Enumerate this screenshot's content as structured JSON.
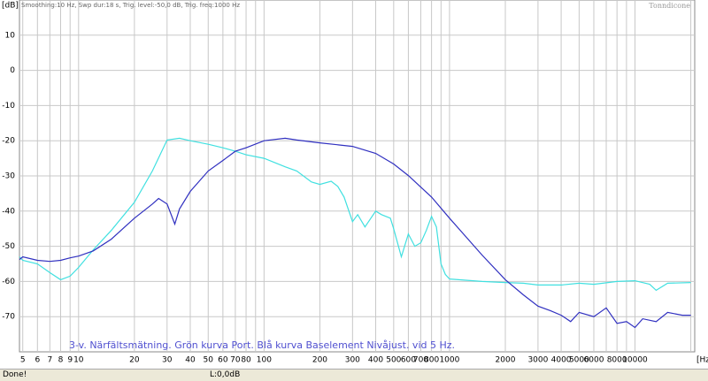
{
  "chart_data": {
    "type": "line",
    "header": "Smoothing:10 Hz, Swp dur:18 s, Trig. level:-50,0 dB, Trig. freq:1000 Hz",
    "watermark": "Tonndicone",
    "y_unit": "[dB]",
    "x_unit": "[Hz]",
    "annotation": "3-v. Närfältsmätning. Grön kurva Port. Blå kurva Baselement  Nivåjust. vid 5 Hz.",
    "xscale": "log",
    "grid": true,
    "xlim": [
      4.8,
      21000
    ],
    "ylim": [
      -80,
      20
    ],
    "yticks": [
      10,
      0,
      -10,
      -20,
      -30,
      -40,
      -50,
      -60,
      -70
    ],
    "xticks": [
      5,
      6,
      7,
      8,
      9,
      10,
      20,
      30,
      40,
      50,
      60,
      70,
      80,
      100,
      200,
      300,
      400,
      500,
      600,
      700,
      800,
      1000,
      2000,
      3000,
      4000,
      5000,
      6000,
      8000,
      10000
    ],
    "x_unlabeled_grid": [
      90,
      900,
      7000,
      9000,
      20000
    ],
    "series": [
      {
        "name": "Port",
        "color": "#40e0e0",
        "x": [
          4.8,
          5,
          6,
          7,
          8,
          9,
          10,
          12,
          15,
          20,
          25,
          30,
          35,
          40,
          50,
          60,
          70,
          80,
          100,
          130,
          150,
          180,
          200,
          230,
          250,
          270,
          300,
          320,
          350,
          400,
          430,
          480,
          500,
          550,
          600,
          650,
          700,
          750,
          800,
          850,
          900,
          950,
          1000,
          1500,
          2000,
          2500,
          3000,
          4000,
          5000,
          6000,
          8000,
          10000,
          12000,
          13000,
          15000,
          20000
        ],
        "values": [
          -53,
          -54,
          -55,
          -57.5,
          -59.5,
          -58.5,
          -56,
          -51,
          -45.5,
          -37.5,
          -28.6,
          -19.8,
          -19.3,
          -20,
          -21,
          -22,
          -23,
          -24,
          -25,
          -27.4,
          -28.6,
          -31.7,
          -32.4,
          -31.5,
          -33,
          -36,
          -43,
          -41,
          -44.5,
          -40,
          -41,
          -42,
          -45,
          -53,
          -46.5,
          -50,
          -49,
          -45.5,
          -41.5,
          -44.5,
          -55,
          -58,
          -59.3,
          -60,
          -60.3,
          -60.5,
          -61,
          -61,
          -60.5,
          -60.8,
          -60,
          -59.8,
          -60.8,
          -62.5,
          -60.5,
          -60.3
        ]
      },
      {
        "name": "Baselement",
        "color": "#3030c0",
        "x": [
          4.8,
          5,
          6,
          7,
          8,
          9,
          10,
          12,
          15,
          20,
          25,
          27,
          30,
          33,
          35,
          40,
          50,
          60,
          70,
          80,
          100,
          130,
          150,
          200,
          300,
          400,
          500,
          600,
          800,
          1000,
          1500,
          2000,
          2500,
          3000,
          3500,
          4000,
          4500,
          5000,
          6000,
          7000,
          8000,
          9000,
          10000,
          11000,
          13000,
          15000,
          18000,
          20000
        ],
        "values": [
          -53.8,
          -53,
          -54,
          -54.3,
          -54,
          -53.3,
          -52.8,
          -51.3,
          -48,
          -42,
          -38,
          -36.4,
          -38,
          -43.7,
          -39.4,
          -34.4,
          -28.6,
          -25.6,
          -23,
          -22,
          -20,
          -19.3,
          -19.8,
          -20.6,
          -21.6,
          -23.6,
          -26.6,
          -29.9,
          -36,
          -42,
          -52.5,
          -59.5,
          -63.8,
          -67,
          -68.3,
          -69.6,
          -71.4,
          -68.8,
          -70,
          -67.5,
          -71.9,
          -71.4,
          -73.1,
          -70.6,
          -71.4,
          -68.8,
          -69.6,
          -69.6
        ]
      }
    ]
  },
  "status": {
    "left": "Done!",
    "right": "L:0,0dB"
  }
}
